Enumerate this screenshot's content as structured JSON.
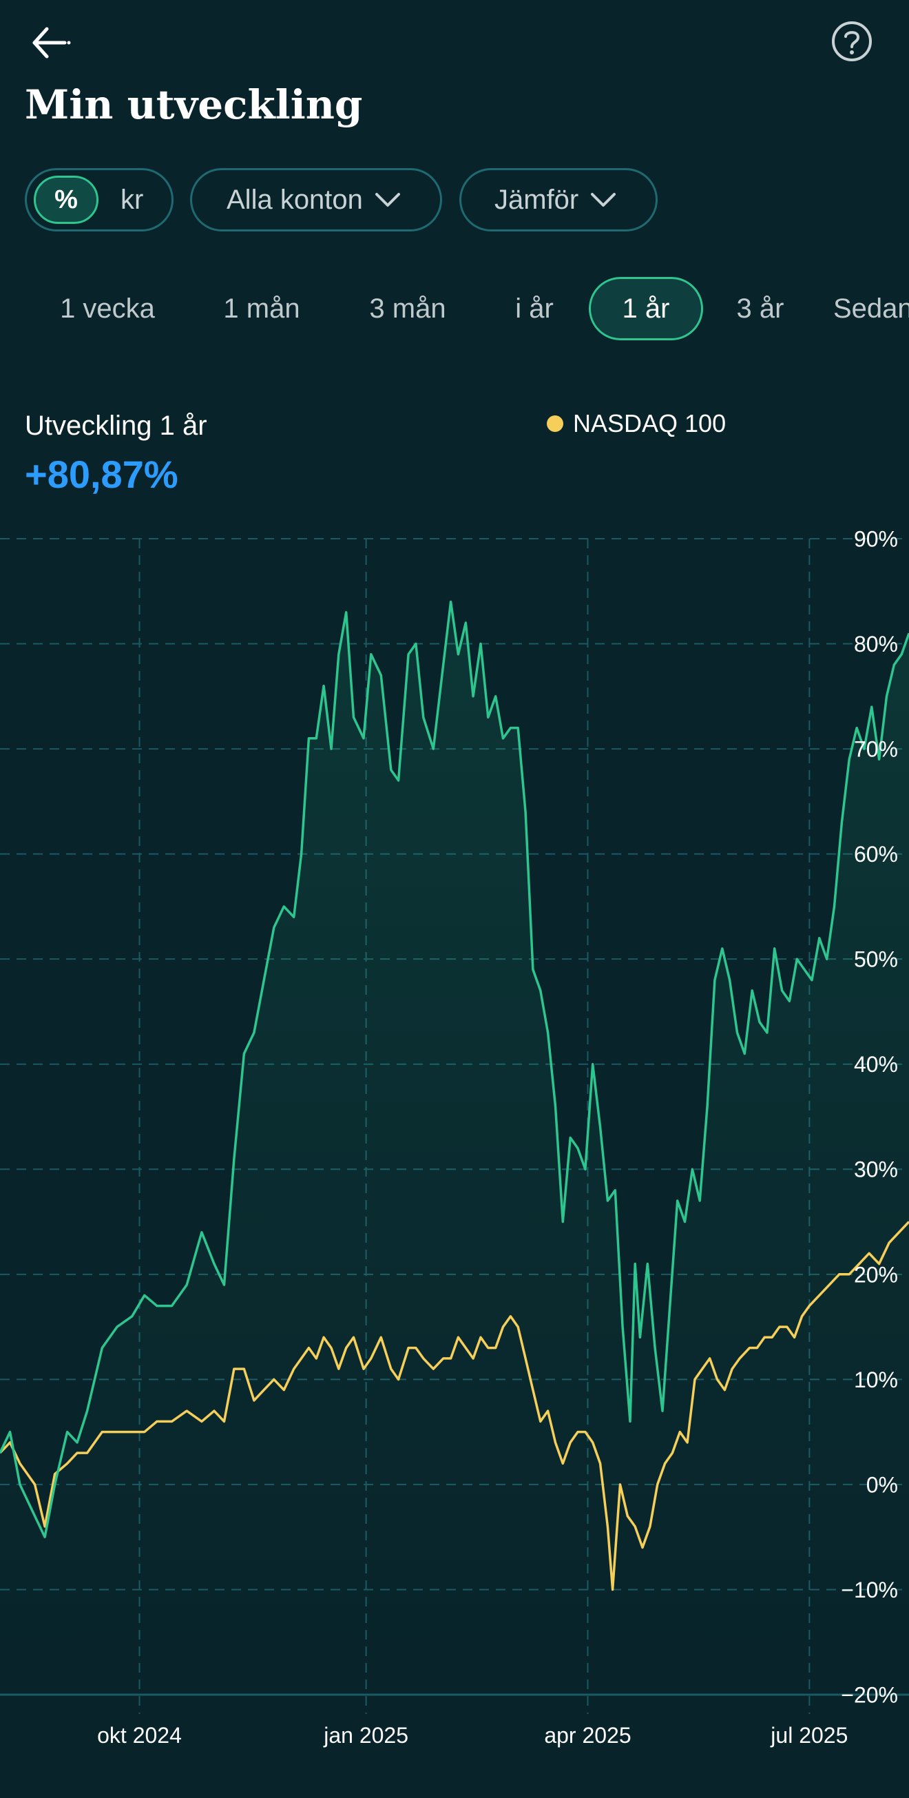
{
  "header": {
    "title": "Min utveckling",
    "back_icon": "arrow-left-icon",
    "help_icon": "question-circle-icon"
  },
  "filters": {
    "unit_percent": "%",
    "unit_currency": "kr",
    "accounts": "Alla konton",
    "compare": "Jämför"
  },
  "range_tabs": [
    "1 vecka",
    "1 mån",
    "3 mån",
    "i år",
    "1 år",
    "3 år",
    "Sedan start"
  ],
  "active_range": "1 år",
  "summary": {
    "label": "Utveckling 1 år",
    "value": "+80,87%"
  },
  "legend": {
    "benchmark": "NASDAQ 100",
    "benchmark_color": "#f6cf5b",
    "portfolio_color": "#2ec58f"
  },
  "chart_data": {
    "type": "line",
    "ylim": [
      -20,
      90
    ],
    "yticks": [
      90,
      80,
      70,
      60,
      50,
      40,
      30,
      20,
      10,
      0,
      -10,
      -20
    ],
    "ytick_labels": [
      "90%",
      "80%",
      "70%",
      "60%",
      "50%",
      "40%",
      "30%",
      "20%",
      "10%",
      "0%",
      "−10%",
      "−20%"
    ],
    "x_range": [
      "2024-08-06",
      "2025-08-06"
    ],
    "xtick_dates": [
      "2024-10-01",
      "2024-12-31",
      "2025-03-30",
      "2025-06-27"
    ],
    "xtick_labels": [
      "okt 2024",
      "jan 2025",
      "apr 2025",
      "jul 2025"
    ],
    "grid": true,
    "series": [
      {
        "name": "",
        "color": "#2ec58f",
        "points": [
          [
            "2024-08-06",
            3
          ],
          [
            "2024-08-10",
            5
          ],
          [
            "2024-08-14",
            0
          ],
          [
            "2024-08-20",
            -3
          ],
          [
            "2024-08-24",
            -5
          ],
          [
            "2024-08-28",
            0
          ],
          [
            "2024-09-02",
            5
          ],
          [
            "2024-09-06",
            4
          ],
          [
            "2024-09-10",
            7
          ],
          [
            "2024-09-16",
            13
          ],
          [
            "2024-09-22",
            15
          ],
          [
            "2024-09-28",
            16
          ],
          [
            "2024-10-03",
            18
          ],
          [
            "2024-10-08",
            17
          ],
          [
            "2024-10-14",
            17
          ],
          [
            "2024-10-20",
            19
          ],
          [
            "2024-10-26",
            24
          ],
          [
            "2024-10-31",
            21
          ],
          [
            "2024-11-04",
            19
          ],
          [
            "2024-11-08",
            31
          ],
          [
            "2024-11-12",
            41
          ],
          [
            "2024-11-16",
            43
          ],
          [
            "2024-11-20",
            48
          ],
          [
            "2024-11-24",
            53
          ],
          [
            "2024-11-28",
            55
          ],
          [
            "2024-12-02",
            54
          ],
          [
            "2024-12-05",
            60
          ],
          [
            "2024-12-08",
            71
          ],
          [
            "2024-12-11",
            71
          ],
          [
            "2024-12-14",
            76
          ],
          [
            "2024-12-17",
            70
          ],
          [
            "2024-12-20",
            79
          ],
          [
            "2024-12-23",
            83
          ],
          [
            "2024-12-26",
            73
          ],
          [
            "2024-12-30",
            71
          ],
          [
            "2025-01-02",
            79
          ],
          [
            "2025-01-06",
            77
          ],
          [
            "2025-01-10",
            68
          ],
          [
            "2025-01-13",
            67
          ],
          [
            "2025-01-17",
            79
          ],
          [
            "2025-01-20",
            80
          ],
          [
            "2025-01-23",
            73
          ],
          [
            "2025-01-27",
            70
          ],
          [
            "2025-01-31",
            78
          ],
          [
            "2025-02-03",
            84
          ],
          [
            "2025-02-06",
            79
          ],
          [
            "2025-02-09",
            82
          ],
          [
            "2025-02-12",
            75
          ],
          [
            "2025-02-15",
            80
          ],
          [
            "2025-02-18",
            73
          ],
          [
            "2025-02-21",
            75
          ],
          [
            "2025-02-24",
            71
          ],
          [
            "2025-02-27",
            72
          ],
          [
            "2025-03-02",
            72
          ],
          [
            "2025-03-05",
            64
          ],
          [
            "2025-03-08",
            49
          ],
          [
            "2025-03-11",
            47
          ],
          [
            "2025-03-14",
            43
          ],
          [
            "2025-03-17",
            36
          ],
          [
            "2025-03-20",
            25
          ],
          [
            "2025-03-23",
            33
          ],
          [
            "2025-03-26",
            32
          ],
          [
            "2025-03-29",
            30
          ],
          [
            "2025-04-01",
            40
          ],
          [
            "2025-04-04",
            34
          ],
          [
            "2025-04-07",
            27
          ],
          [
            "2025-04-10",
            28
          ],
          [
            "2025-04-13",
            15
          ],
          [
            "2025-04-16",
            6
          ],
          [
            "2025-04-18",
            21
          ],
          [
            "2025-04-20",
            14
          ],
          [
            "2025-04-23",
            21
          ],
          [
            "2025-04-26",
            13
          ],
          [
            "2025-04-29",
            7
          ],
          [
            "2025-05-02",
            17
          ],
          [
            "2025-05-05",
            27
          ],
          [
            "2025-05-08",
            25
          ],
          [
            "2025-05-11",
            30
          ],
          [
            "2025-05-14",
            27
          ],
          [
            "2025-05-17",
            36
          ],
          [
            "2025-05-20",
            48
          ],
          [
            "2025-05-23",
            51
          ],
          [
            "2025-05-26",
            48
          ],
          [
            "2025-05-29",
            43
          ],
          [
            "2025-06-01",
            41
          ],
          [
            "2025-06-04",
            47
          ],
          [
            "2025-06-07",
            44
          ],
          [
            "2025-06-10",
            43
          ],
          [
            "2025-06-13",
            51
          ],
          [
            "2025-06-16",
            47
          ],
          [
            "2025-06-19",
            46
          ],
          [
            "2025-06-22",
            50
          ],
          [
            "2025-06-25",
            49
          ],
          [
            "2025-06-28",
            48
          ],
          [
            "2025-07-01",
            52
          ],
          [
            "2025-07-04",
            50
          ],
          [
            "2025-07-07",
            55
          ],
          [
            "2025-07-10",
            63
          ],
          [
            "2025-07-13",
            69
          ],
          [
            "2025-07-16",
            72
          ],
          [
            "2025-07-19",
            70
          ],
          [
            "2025-07-22",
            74
          ],
          [
            "2025-07-25",
            69
          ],
          [
            "2025-07-28",
            75
          ],
          [
            "2025-07-31",
            78
          ],
          [
            "2025-08-03",
            79
          ],
          [
            "2025-08-06",
            81
          ]
        ]
      },
      {
        "name": "NASDAQ 100",
        "color": "#f6cf5b",
        "points": [
          [
            "2024-08-06",
            3
          ],
          [
            "2024-08-10",
            4
          ],
          [
            "2024-08-14",
            2
          ],
          [
            "2024-08-20",
            0
          ],
          [
            "2024-08-24",
            -4
          ],
          [
            "2024-08-28",
            1
          ],
          [
            "2024-09-02",
            2
          ],
          [
            "2024-09-06",
            3
          ],
          [
            "2024-09-10",
            3
          ],
          [
            "2024-09-16",
            5
          ],
          [
            "2024-09-22",
            5
          ],
          [
            "2024-09-28",
            5
          ],
          [
            "2024-10-03",
            5
          ],
          [
            "2024-10-08",
            6
          ],
          [
            "2024-10-14",
            6
          ],
          [
            "2024-10-20",
            7
          ],
          [
            "2024-10-26",
            6
          ],
          [
            "2024-10-31",
            7
          ],
          [
            "2024-11-04",
            6
          ],
          [
            "2024-11-08",
            11
          ],
          [
            "2024-11-12",
            11
          ],
          [
            "2024-11-16",
            8
          ],
          [
            "2024-11-20",
            9
          ],
          [
            "2024-11-24",
            10
          ],
          [
            "2024-11-28",
            9
          ],
          [
            "2024-12-02",
            11
          ],
          [
            "2024-12-05",
            12
          ],
          [
            "2024-12-08",
            13
          ],
          [
            "2024-12-11",
            12
          ],
          [
            "2024-12-14",
            14
          ],
          [
            "2024-12-17",
            13
          ],
          [
            "2024-12-20",
            11
          ],
          [
            "2024-12-23",
            13
          ],
          [
            "2024-12-26",
            14
          ],
          [
            "2024-12-30",
            11
          ],
          [
            "2025-01-02",
            12
          ],
          [
            "2025-01-06",
            14
          ],
          [
            "2025-01-10",
            11
          ],
          [
            "2025-01-13",
            10
          ],
          [
            "2025-01-17",
            13
          ],
          [
            "2025-01-20",
            13
          ],
          [
            "2025-01-23",
            12
          ],
          [
            "2025-01-27",
            11
          ],
          [
            "2025-01-31",
            12
          ],
          [
            "2025-02-03",
            12
          ],
          [
            "2025-02-06",
            14
          ],
          [
            "2025-02-09",
            13
          ],
          [
            "2025-02-12",
            12
          ],
          [
            "2025-02-15",
            14
          ],
          [
            "2025-02-18",
            13
          ],
          [
            "2025-02-21",
            13
          ],
          [
            "2025-02-24",
            15
          ],
          [
            "2025-02-27",
            16
          ],
          [
            "2025-03-02",
            15
          ],
          [
            "2025-03-05",
            12
          ],
          [
            "2025-03-08",
            9
          ],
          [
            "2025-03-11",
            6
          ],
          [
            "2025-03-14",
            7
          ],
          [
            "2025-03-17",
            4
          ],
          [
            "2025-03-20",
            2
          ],
          [
            "2025-03-23",
            4
          ],
          [
            "2025-03-26",
            5
          ],
          [
            "2025-03-29",
            5
          ],
          [
            "2025-04-01",
            4
          ],
          [
            "2025-04-04",
            2
          ],
          [
            "2025-04-07",
            -4
          ],
          [
            "2025-04-09",
            -10
          ],
          [
            "2025-04-12",
            0
          ],
          [
            "2025-04-15",
            -3
          ],
          [
            "2025-04-18",
            -4
          ],
          [
            "2025-04-21",
            -6
          ],
          [
            "2025-04-24",
            -4
          ],
          [
            "2025-04-27",
            0
          ],
          [
            "2025-04-30",
            2
          ],
          [
            "2025-05-03",
            3
          ],
          [
            "2025-05-06",
            5
          ],
          [
            "2025-05-09",
            4
          ],
          [
            "2025-05-12",
            10
          ],
          [
            "2025-05-15",
            11
          ],
          [
            "2025-05-18",
            12
          ],
          [
            "2025-05-21",
            10
          ],
          [
            "2025-05-24",
            9
          ],
          [
            "2025-05-27",
            11
          ],
          [
            "2025-05-30",
            12
          ],
          [
            "2025-06-03",
            13
          ],
          [
            "2025-06-06",
            13
          ],
          [
            "2025-06-09",
            14
          ],
          [
            "2025-06-12",
            14
          ],
          [
            "2025-06-15",
            15
          ],
          [
            "2025-06-18",
            15
          ],
          [
            "2025-06-21",
            14
          ],
          [
            "2025-06-24",
            16
          ],
          [
            "2025-06-27",
            17
          ],
          [
            "2025-07-01",
            18
          ],
          [
            "2025-07-05",
            19
          ],
          [
            "2025-07-09",
            20
          ],
          [
            "2025-07-13",
            20
          ],
          [
            "2025-07-17",
            21
          ],
          [
            "2025-07-21",
            22
          ],
          [
            "2025-07-25",
            21
          ],
          [
            "2025-07-29",
            23
          ],
          [
            "2025-08-02",
            24
          ],
          [
            "2025-08-06",
            25
          ]
        ]
      }
    ]
  }
}
